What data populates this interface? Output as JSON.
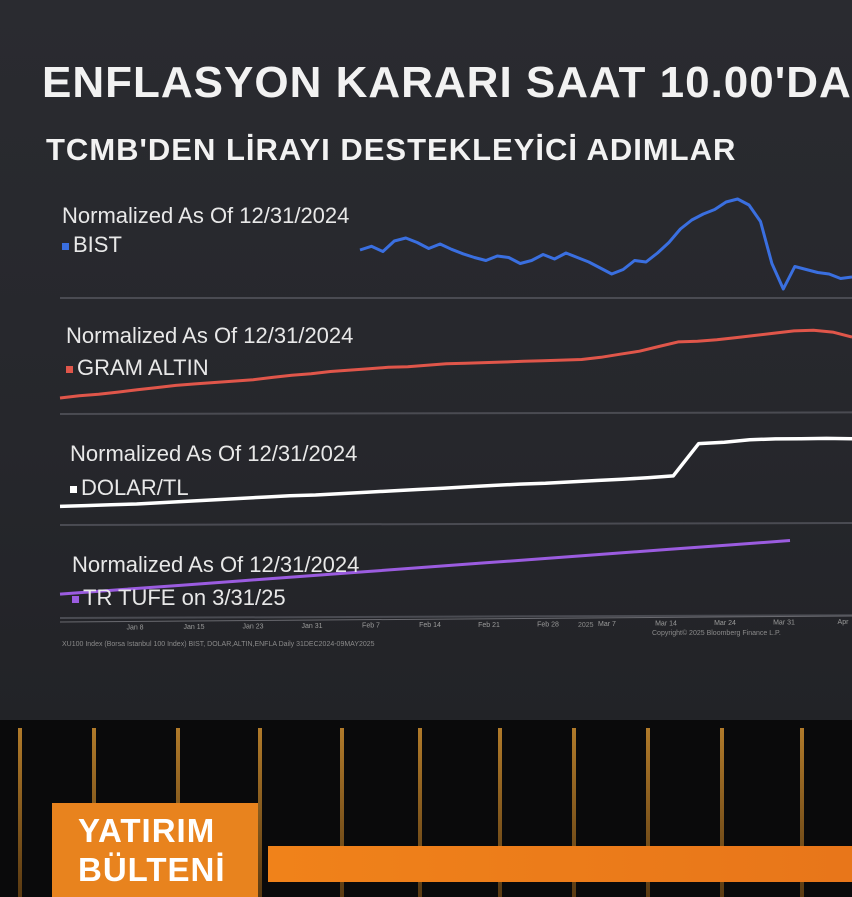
{
  "header": {
    "title": "ENFLASYON KARARI SAAT 10.00'DA",
    "subtitle": "TCMB'DEN LİRAYI DESTEKLEYİCİ ADIMLAR"
  },
  "panels": [
    {
      "label": "Normalized As Of 12/31/2024",
      "legend": "BIST",
      "color": "#3a6fe0"
    },
    {
      "label": "Normalized As Of 12/31/2024",
      "legend": "GRAM ALTIN",
      "color": "#e0564a"
    },
    {
      "label": "Normalized As Of 12/31/2024",
      "legend": "DOLAR/TL",
      "color": "#ffffff"
    },
    {
      "label": "Normalized As Of 12/31/2024",
      "legend": "TR TUFE on 3/31/25",
      "color": "#9b5ce0"
    }
  ],
  "footer": {
    "source": "XU100 Index (Borsa Istanbul 100 Index) BIST, DOLAR,ALTIN,ENFLA Daily 31DEC2024-09MAY2025",
    "copyright": "Copyright© 2025 Bloomberg Finance L.P.",
    "year": "2025"
  },
  "brand": {
    "line1": "YATIRIM",
    "line2": "BÜLTENİ"
  },
  "chart_data": {
    "type": "line",
    "title": "",
    "x_ticks": [
      "Jan 8",
      "Jan 15",
      "Jan 23",
      "Jan 31",
      "Feb 7",
      "Feb 14",
      "Feb 21",
      "Feb 28",
      "Mar 7",
      "Mar 14",
      "Mar 24",
      "Mar 31",
      "Apr"
    ],
    "grid": true,
    "legend_placement": "top-left of each panel",
    "series": [
      {
        "name": "BIST",
        "color": "#3a6fe0",
        "values": [
          100,
          100.5,
          99.8,
          101.2,
          101.6,
          101.0,
          100.2,
          100.8,
          100.1,
          99.5,
          99.0,
          98.6,
          99.2,
          99.0,
          98.2,
          98.6,
          99.4,
          98.8,
          99.6,
          99.0,
          98.4,
          97.6,
          96.8,
          97.4,
          98.6,
          98.4,
          99.6,
          101.0,
          102.8,
          104.0,
          104.8,
          105.4,
          106.4,
          106.8,
          106.0,
          103.8,
          98.2,
          94.8,
          97.8,
          97.4,
          97.0,
          96.8,
          96.2,
          96.4
        ]
      },
      {
        "name": "GRAM ALTIN",
        "color": "#e0564a",
        "values": [
          100,
          100.6,
          101.0,
          101.6,
          102.2,
          102.8,
          103.4,
          103.8,
          104.2,
          104.6,
          105.0,
          105.6,
          106.2,
          106.6,
          107.2,
          107.6,
          108.0,
          108.4,
          108.6,
          109.0,
          109.4,
          109.6,
          109.8,
          110.0,
          110.2,
          110.4,
          110.6,
          110.8,
          111.4,
          112.2,
          113.0,
          114.2,
          115.4,
          115.6,
          116.0,
          116.6,
          117.2,
          117.8,
          118.4,
          118.6,
          118.2,
          117.0
        ]
      },
      {
        "name": "DOLAR/TL",
        "color": "#ffffff",
        "values": [
          100,
          100.2,
          100.4,
          100.6,
          100.9,
          101.2,
          101.5,
          101.8,
          102.1,
          102.4,
          102.6,
          102.9,
          103.2,
          103.5,
          103.8,
          104.1,
          104.4,
          104.7,
          105.0,
          105.2,
          105.5,
          105.8,
          106.1,
          106.4,
          106.8,
          112.6,
          112.9,
          113.4,
          113.6,
          113.7,
          113.8,
          113.8
        ]
      },
      {
        "name": "TR TUFE on 3/31/25",
        "color": "#9b5ce0",
        "values": [
          100,
          100.8,
          101.6,
          102.4,
          103.2,
          104.0,
          104.8,
          105.6,
          106.4,
          107.2,
          108.0,
          108.8,
          109.6
        ]
      }
    ]
  }
}
